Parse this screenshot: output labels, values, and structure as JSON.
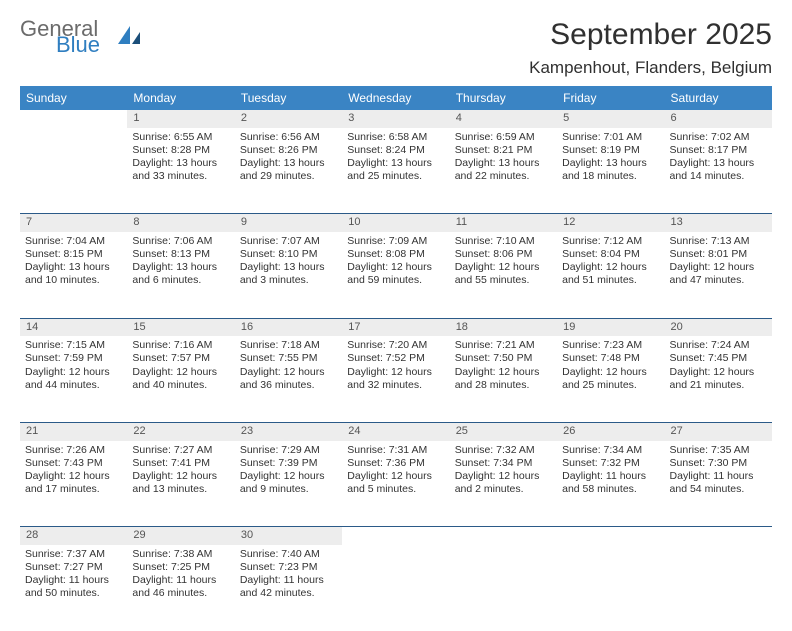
{
  "brand": {
    "word1": "General",
    "word2": "Blue"
  },
  "title": {
    "month": "September 2025",
    "location": "Kampenhout, Flanders, Belgium"
  },
  "style": {
    "header_bg": "#3a84c4",
    "header_fg": "#ffffff",
    "daynum_bg": "#ededed",
    "rule_color": "#2b5a88",
    "text_color": "#333333",
    "cell_font_size": 10.5,
    "daynum_font_size": 11,
    "header_font_size": 12,
    "title_font_size": 30,
    "location_font_size": 17
  },
  "weekdays": [
    "Sunday",
    "Monday",
    "Tuesday",
    "Wednesday",
    "Thursday",
    "Friday",
    "Saturday"
  ],
  "weeks": [
    {
      "nums": [
        "",
        "1",
        "2",
        "3",
        "4",
        "5",
        "6"
      ],
      "cells": [
        {
          "sunrise": "",
          "sunset": "",
          "daylight1": "",
          "daylight2": ""
        },
        {
          "sunrise": "Sunrise: 6:55 AM",
          "sunset": "Sunset: 8:28 PM",
          "daylight1": "Daylight: 13 hours",
          "daylight2": "and 33 minutes."
        },
        {
          "sunrise": "Sunrise: 6:56 AM",
          "sunset": "Sunset: 8:26 PM",
          "daylight1": "Daylight: 13 hours",
          "daylight2": "and 29 minutes."
        },
        {
          "sunrise": "Sunrise: 6:58 AM",
          "sunset": "Sunset: 8:24 PM",
          "daylight1": "Daylight: 13 hours",
          "daylight2": "and 25 minutes."
        },
        {
          "sunrise": "Sunrise: 6:59 AM",
          "sunset": "Sunset: 8:21 PM",
          "daylight1": "Daylight: 13 hours",
          "daylight2": "and 22 minutes."
        },
        {
          "sunrise": "Sunrise: 7:01 AM",
          "sunset": "Sunset: 8:19 PM",
          "daylight1": "Daylight: 13 hours",
          "daylight2": "and 18 minutes."
        },
        {
          "sunrise": "Sunrise: 7:02 AM",
          "sunset": "Sunset: 8:17 PM",
          "daylight1": "Daylight: 13 hours",
          "daylight2": "and 14 minutes."
        }
      ]
    },
    {
      "nums": [
        "7",
        "8",
        "9",
        "10",
        "11",
        "12",
        "13"
      ],
      "cells": [
        {
          "sunrise": "Sunrise: 7:04 AM",
          "sunset": "Sunset: 8:15 PM",
          "daylight1": "Daylight: 13 hours",
          "daylight2": "and 10 minutes."
        },
        {
          "sunrise": "Sunrise: 7:06 AM",
          "sunset": "Sunset: 8:13 PM",
          "daylight1": "Daylight: 13 hours",
          "daylight2": "and 6 minutes."
        },
        {
          "sunrise": "Sunrise: 7:07 AM",
          "sunset": "Sunset: 8:10 PM",
          "daylight1": "Daylight: 13 hours",
          "daylight2": "and 3 minutes."
        },
        {
          "sunrise": "Sunrise: 7:09 AM",
          "sunset": "Sunset: 8:08 PM",
          "daylight1": "Daylight: 12 hours",
          "daylight2": "and 59 minutes."
        },
        {
          "sunrise": "Sunrise: 7:10 AM",
          "sunset": "Sunset: 8:06 PM",
          "daylight1": "Daylight: 12 hours",
          "daylight2": "and 55 minutes."
        },
        {
          "sunrise": "Sunrise: 7:12 AM",
          "sunset": "Sunset: 8:04 PM",
          "daylight1": "Daylight: 12 hours",
          "daylight2": "and 51 minutes."
        },
        {
          "sunrise": "Sunrise: 7:13 AM",
          "sunset": "Sunset: 8:01 PM",
          "daylight1": "Daylight: 12 hours",
          "daylight2": "and 47 minutes."
        }
      ]
    },
    {
      "nums": [
        "14",
        "15",
        "16",
        "17",
        "18",
        "19",
        "20"
      ],
      "cells": [
        {
          "sunrise": "Sunrise: 7:15 AM",
          "sunset": "Sunset: 7:59 PM",
          "daylight1": "Daylight: 12 hours",
          "daylight2": "and 44 minutes."
        },
        {
          "sunrise": "Sunrise: 7:16 AM",
          "sunset": "Sunset: 7:57 PM",
          "daylight1": "Daylight: 12 hours",
          "daylight2": "and 40 minutes."
        },
        {
          "sunrise": "Sunrise: 7:18 AM",
          "sunset": "Sunset: 7:55 PM",
          "daylight1": "Daylight: 12 hours",
          "daylight2": "and 36 minutes."
        },
        {
          "sunrise": "Sunrise: 7:20 AM",
          "sunset": "Sunset: 7:52 PM",
          "daylight1": "Daylight: 12 hours",
          "daylight2": "and 32 minutes."
        },
        {
          "sunrise": "Sunrise: 7:21 AM",
          "sunset": "Sunset: 7:50 PM",
          "daylight1": "Daylight: 12 hours",
          "daylight2": "and 28 minutes."
        },
        {
          "sunrise": "Sunrise: 7:23 AM",
          "sunset": "Sunset: 7:48 PM",
          "daylight1": "Daylight: 12 hours",
          "daylight2": "and 25 minutes."
        },
        {
          "sunrise": "Sunrise: 7:24 AM",
          "sunset": "Sunset: 7:45 PM",
          "daylight1": "Daylight: 12 hours",
          "daylight2": "and 21 minutes."
        }
      ]
    },
    {
      "nums": [
        "21",
        "22",
        "23",
        "24",
        "25",
        "26",
        "27"
      ],
      "cells": [
        {
          "sunrise": "Sunrise: 7:26 AM",
          "sunset": "Sunset: 7:43 PM",
          "daylight1": "Daylight: 12 hours",
          "daylight2": "and 17 minutes."
        },
        {
          "sunrise": "Sunrise: 7:27 AM",
          "sunset": "Sunset: 7:41 PM",
          "daylight1": "Daylight: 12 hours",
          "daylight2": "and 13 minutes."
        },
        {
          "sunrise": "Sunrise: 7:29 AM",
          "sunset": "Sunset: 7:39 PM",
          "daylight1": "Daylight: 12 hours",
          "daylight2": "and 9 minutes."
        },
        {
          "sunrise": "Sunrise: 7:31 AM",
          "sunset": "Sunset: 7:36 PM",
          "daylight1": "Daylight: 12 hours",
          "daylight2": "and 5 minutes."
        },
        {
          "sunrise": "Sunrise: 7:32 AM",
          "sunset": "Sunset: 7:34 PM",
          "daylight1": "Daylight: 12 hours",
          "daylight2": "and 2 minutes."
        },
        {
          "sunrise": "Sunrise: 7:34 AM",
          "sunset": "Sunset: 7:32 PM",
          "daylight1": "Daylight: 11 hours",
          "daylight2": "and 58 minutes."
        },
        {
          "sunrise": "Sunrise: 7:35 AM",
          "sunset": "Sunset: 7:30 PM",
          "daylight1": "Daylight: 11 hours",
          "daylight2": "and 54 minutes."
        }
      ]
    },
    {
      "nums": [
        "28",
        "29",
        "30",
        "",
        "",
        "",
        ""
      ],
      "cells": [
        {
          "sunrise": "Sunrise: 7:37 AM",
          "sunset": "Sunset: 7:27 PM",
          "daylight1": "Daylight: 11 hours",
          "daylight2": "and 50 minutes."
        },
        {
          "sunrise": "Sunrise: 7:38 AM",
          "sunset": "Sunset: 7:25 PM",
          "daylight1": "Daylight: 11 hours",
          "daylight2": "and 46 minutes."
        },
        {
          "sunrise": "Sunrise: 7:40 AM",
          "sunset": "Sunset: 7:23 PM",
          "daylight1": "Daylight: 11 hours",
          "daylight2": "and 42 minutes."
        },
        {
          "sunrise": "",
          "sunset": "",
          "daylight1": "",
          "daylight2": ""
        },
        {
          "sunrise": "",
          "sunset": "",
          "daylight1": "",
          "daylight2": ""
        },
        {
          "sunrise": "",
          "sunset": "",
          "daylight1": "",
          "daylight2": ""
        },
        {
          "sunrise": "",
          "sunset": "",
          "daylight1": "",
          "daylight2": ""
        }
      ]
    }
  ]
}
